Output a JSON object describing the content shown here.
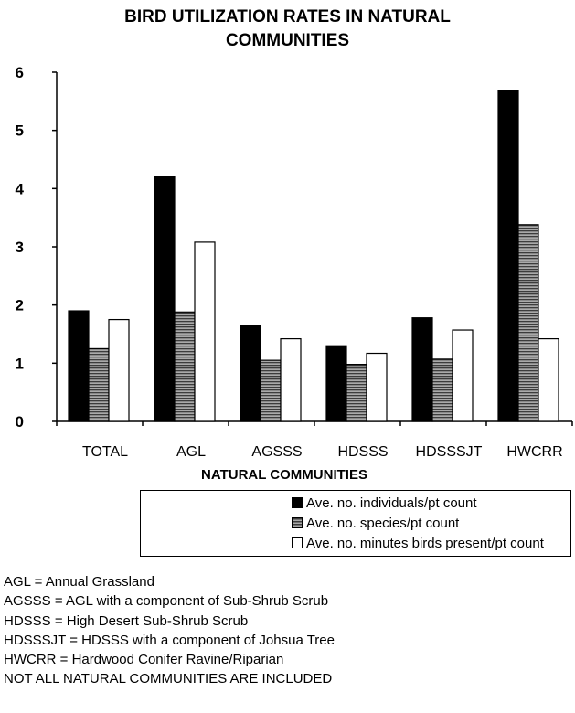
{
  "chart_data": {
    "type": "bar",
    "title_lines": [
      "BIRD UTILIZATION RATES IN NATURAL",
      "COMMUNITIES"
    ],
    "xlabel": "NATURAL COMMUNITIES",
    "ylabel": "",
    "categories": [
      "TOTAL",
      "AGL",
      "AGSSS",
      "HDSSS",
      "HDSSSJT",
      "HWCRR"
    ],
    "ylim": [
      0,
      6
    ],
    "yticks": [
      "0",
      "1",
      "2",
      "3",
      "4",
      "5",
      "6"
    ],
    "series": [
      {
        "name": "Ave. no. individuals/pt count",
        "values": [
          1.9,
          4.2,
          1.65,
          1.3,
          1.78,
          5.68
        ],
        "color": "#000000",
        "pattern": "solid"
      },
      {
        "name": "Ave. no. species/pt count",
        "values": [
          1.25,
          1.88,
          1.05,
          0.98,
          1.07,
          3.38
        ],
        "color": "#8a8a8a",
        "pattern": "striped"
      },
      {
        "name": "Ave. no. minutes birds present/pt count",
        "values": [
          1.75,
          3.08,
          1.42,
          1.17,
          1.57,
          1.42
        ],
        "color": "#ffffff",
        "pattern": "hollow"
      }
    ],
    "legend_position": "bottom",
    "grid": false
  },
  "notes": [
    "AGL = Annual Grassland",
    "AGSSS = AGL with a component of Sub-Shrub Scrub",
    "HDSSS = High Desert Sub-Shrub Scrub",
    "HDSSSJT = HDSSS with a component of Johsua Tree",
    "HWCRR = Hardwood Conifer Ravine/Riparian",
    "NOT ALL NATURAL COMMUNITIES ARE INCLUDED"
  ]
}
